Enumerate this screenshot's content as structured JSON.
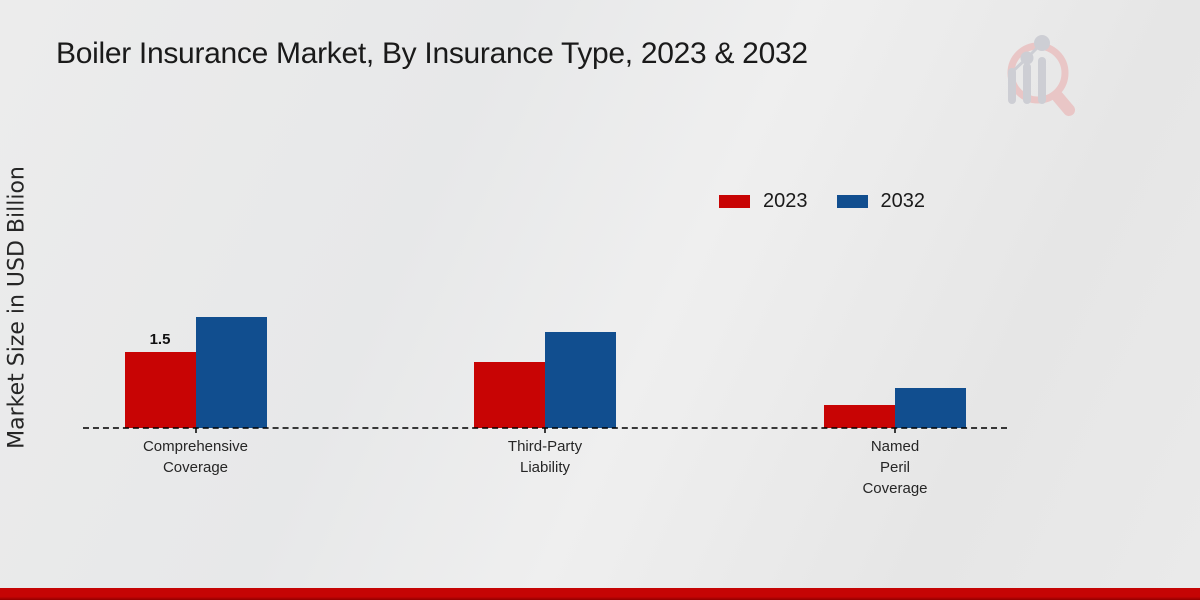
{
  "title": "Boiler Insurance Market, By Insurance Type, 2023 & 2032",
  "ylabel": "Market Size in USD Billion",
  "colors": {
    "series_2023": "#c80404",
    "series_2032": "#114e8f",
    "footer_bar": "#c50404",
    "background": "#e9e9e9",
    "axis_line": "#3c3c3c",
    "text": "#1a1a1a"
  },
  "icons": {
    "watermark": "magnifier-bar-chart-logo-icon"
  },
  "legend": {
    "items": [
      {
        "label": "2023",
        "color": "#c80404"
      },
      {
        "label": "2032",
        "color": "#114e8f"
      }
    ]
  },
  "chart_data": {
    "type": "bar",
    "title": "Boiler Insurance Market, By Insurance Type, 2023 & 2032",
    "xlabel": "",
    "ylabel": "Market Size in USD Billion",
    "categories": [
      "Comprehensive Coverage",
      "Third-Party Liability",
      "Named Peril Coverage"
    ],
    "categories_display": [
      [
        "Comprehensive",
        "Coverage"
      ],
      [
        "Third-Party",
        "Liability"
      ],
      [
        "Named",
        "Peril",
        "Coverage"
      ]
    ],
    "series": [
      {
        "name": "2023",
        "color": "#c80404",
        "values": [
          1.5,
          1.3,
          0.45
        ]
      },
      {
        "name": "2032",
        "color": "#114e8f",
        "values": [
          2.2,
          1.9,
          0.8
        ]
      }
    ],
    "bar_labels": [
      {
        "series": "2023",
        "category_index": 0,
        "text": "1.5"
      }
    ],
    "ylim": [
      0,
      2.5
    ],
    "grid": false,
    "y_ticks_visible": false,
    "legend_position": "upper-right"
  }
}
